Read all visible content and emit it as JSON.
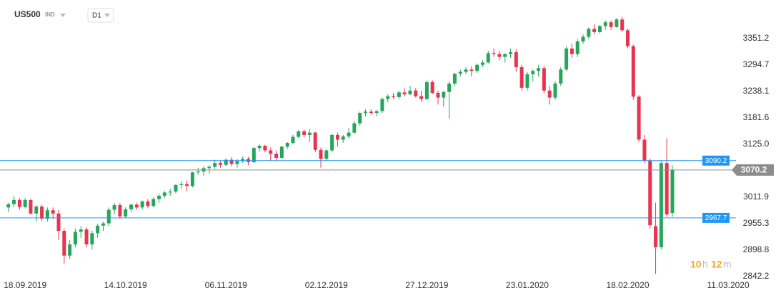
{
  "header": {
    "symbol": "US500",
    "market": "IND",
    "timeframe": "D1"
  },
  "countdown": {
    "hours": "10",
    "hours_unit": "h",
    "minutes": "12",
    "minutes_unit": "m"
  },
  "chart_data": {
    "type": "candlestick",
    "up_color": "#26a65b",
    "down_color": "#e8344e",
    "xlim": [
      -1.5,
      130.4
    ],
    "xticks": [
      {
        "value": 3,
        "label": "18.09.2019"
      },
      {
        "value": 21,
        "label": "14.10.2019"
      },
      {
        "value": 39,
        "label": "06.11.2019"
      },
      {
        "value": 57,
        "label": "02.12.2019"
      },
      {
        "value": 75,
        "label": "27.12.2019"
      },
      {
        "value": 93,
        "label": "23.01.2020"
      },
      {
        "value": 111,
        "label": "18.02.2020"
      },
      {
        "value": 129,
        "label": "11.03.2020"
      }
    ],
    "ylim": [
      2825.4,
      3433.7
    ],
    "yticks": [
      2842.2,
      2898.8,
      2955.3,
      3011.9,
      {
        "value": 3125,
        "label": "3125.0"
      },
      3181.6,
      3238.1,
      3294.7,
      3351.2
    ],
    "grid": false,
    "price_lines": [
      {
        "value": 3090.2,
        "color": "#2196f3"
      },
      {
        "value": 2967.7,
        "color": "#2196f3"
      }
    ],
    "current_price": {
      "value": 3070.2,
      "color": "#8c8c8c"
    },
    "ohlc": [
      [
        2990,
        3000,
        2980,
        2997
      ],
      [
        2997,
        3015,
        2990,
        3006
      ],
      [
        3006,
        3010,
        2985,
        2991
      ],
      [
        2991,
        3010,
        2988,
        3006
      ],
      [
        3006,
        3008,
        2975,
        2977
      ],
      [
        2977,
        2995,
        2960,
        2992
      ],
      [
        2992,
        2996,
        2960,
        2966
      ],
      [
        2966,
        2990,
        2960,
        2984
      ],
      [
        2984,
        2990,
        2965,
        2977
      ],
      [
        2977,
        2985,
        2920,
        2940
      ],
      [
        2940,
        2945,
        2870,
        2887
      ],
      [
        2887,
        2920,
        2880,
        2911
      ],
      [
        2911,
        2945,
        2905,
        2938
      ],
      [
        2938,
        2950,
        2925,
        2943
      ],
      [
        2943,
        2948,
        2905,
        2911
      ],
      [
        2911,
        2940,
        2900,
        2935
      ],
      [
        2935,
        2955,
        2925,
        2951
      ],
      [
        2951,
        2960,
        2940,
        2956
      ],
      [
        2956,
        2990,
        2950,
        2985
      ],
      [
        2985,
        3000,
        2975,
        2995
      ],
      [
        2995,
        3000,
        2965,
        2971
      ],
      [
        2971,
        2990,
        2968,
        2986
      ],
      [
        2986,
        2998,
        2980,
        2996
      ],
      [
        2996,
        3000,
        2985,
        2990
      ],
      [
        2990,
        3005,
        2985,
        3003
      ],
      [
        3003,
        3008,
        2988,
        2993
      ],
      [
        2993,
        3012,
        2990,
        3008
      ],
      [
        3008,
        3020,
        3000,
        3015
      ],
      [
        3015,
        3025,
        3010,
        3022
      ],
      [
        3022,
        3030,
        3015,
        3024
      ],
      [
        3024,
        3040,
        3020,
        3038
      ],
      [
        3038,
        3046,
        3030,
        3040
      ],
      [
        3040,
        3048,
        3025,
        3036
      ],
      [
        3036,
        3066,
        3033,
        3065
      ],
      [
        3065,
        3075,
        3060,
        3067
      ],
      [
        3067,
        3078,
        3058,
        3074
      ],
      [
        3074,
        3080,
        3062,
        3077
      ],
      [
        3077,
        3092,
        3072,
        3085
      ],
      [
        3085,
        3090,
        3075,
        3081
      ],
      [
        3081,
        3095,
        3078,
        3092
      ],
      [
        3092,
        3098,
        3078,
        3083
      ],
      [
        3083,
        3094,
        3075,
        3089
      ],
      [
        3089,
        3100,
        3085,
        3094
      ],
      [
        3094,
        3098,
        3080,
        3087
      ],
      [
        3087,
        3120,
        3085,
        3117
      ],
      [
        3117,
        3125,
        3110,
        3122
      ],
      [
        3122,
        3124,
        3108,
        3112
      ],
      [
        3112,
        3118,
        3090,
        3105
      ],
      [
        3105,
        3112,
        3090,
        3096
      ],
      [
        3096,
        3122,
        3094,
        3120
      ],
      [
        3120,
        3130,
        3115,
        3128
      ],
      [
        3128,
        3145,
        3125,
        3141
      ],
      [
        3141,
        3155,
        3138,
        3153
      ],
      [
        3153,
        3157,
        3140,
        3145
      ],
      [
        3145,
        3158,
        3130,
        3150
      ],
      [
        3150,
        3152,
        3108,
        3113
      ],
      [
        3113,
        3118,
        3075,
        3094
      ],
      [
        3094,
        3115,
        3090,
        3112
      ],
      [
        3112,
        3148,
        3108,
        3145
      ],
      [
        3145,
        3150,
        3120,
        3135
      ],
      [
        3135,
        3145,
        3128,
        3142
      ],
      [
        3142,
        3160,
        3138,
        3150
      ],
      [
        3150,
        3175,
        3148,
        3170
      ],
      [
        3170,
        3195,
        3165,
        3192
      ],
      [
        3192,
        3200,
        3185,
        3195
      ],
      [
        3195,
        3200,
        3188,
        3192
      ],
      [
        3192,
        3198,
        3185,
        3196
      ],
      [
        3196,
        3225,
        3192,
        3222
      ],
      [
        3222,
        3232,
        3215,
        3228
      ],
      [
        3228,
        3235,
        3222,
        3226
      ],
      [
        3226,
        3240,
        3222,
        3236
      ],
      [
        3236,
        3245,
        3228,
        3232
      ],
      [
        3232,
        3250,
        3230,
        3240
      ],
      [
        3240,
        3245,
        3225,
        3228
      ],
      [
        3228,
        3240,
        3215,
        3222
      ],
      [
        3222,
        3262,
        3220,
        3258
      ],
      [
        3258,
        3262,
        3232,
        3235
      ],
      [
        3235,
        3240,
        3210,
        3225
      ],
      [
        3225,
        3240,
        3205,
        3237
      ],
      [
        3237,
        3260,
        3180,
        3255
      ],
      [
        3255,
        3278,
        3250,
        3276
      ],
      [
        3276,
        3285,
        3270,
        3280
      ],
      [
        3280,
        3290,
        3275,
        3285
      ],
      [
        3285,
        3292,
        3270,
        3282
      ],
      [
        3282,
        3298,
        3278,
        3295
      ],
      [
        3295,
        3305,
        3290,
        3300
      ],
      [
        3300,
        3325,
        3298,
        3320
      ],
      [
        3320,
        3330,
        3312,
        3318
      ],
      [
        3318,
        3325,
        3305,
        3312
      ],
      [
        3312,
        3320,
        3300,
        3318
      ],
      [
        3318,
        3330,
        3310,
        3322
      ],
      [
        3322,
        3328,
        3280,
        3290
      ],
      [
        3290,
        3295,
        3240,
        3246
      ],
      [
        3246,
        3280,
        3240,
        3275
      ],
      [
        3275,
        3285,
        3260,
        3282
      ],
      [
        3282,
        3295,
        3270,
        3288
      ],
      [
        3288,
        3292,
        3235,
        3240
      ],
      [
        3240,
        3250,
        3210,
        3225
      ],
      [
        3225,
        3260,
        3220,
        3255
      ],
      [
        3255,
        3290,
        3250,
        3285
      ],
      [
        3285,
        3335,
        3282,
        3330
      ],
      [
        3330,
        3340,
        3310,
        3318
      ],
      [
        3318,
        3350,
        3312,
        3345
      ],
      [
        3345,
        3360,
        3340,
        3355
      ],
      [
        3355,
        3375,
        3350,
        3372
      ],
      [
        3372,
        3382,
        3360,
        3365
      ],
      [
        3365,
        3380,
        3362,
        3378
      ],
      [
        3378,
        3390,
        3370,
        3386
      ],
      [
        3386,
        3390,
        3370,
        3376
      ],
      [
        3376,
        3395,
        3374,
        3392
      ],
      [
        3392,
        3398,
        3365,
        3369
      ],
      [
        3369,
        3372,
        3330,
        3335
      ],
      [
        3335,
        3338,
        3220,
        3227
      ],
      [
        3227,
        3230,
        3130,
        3135
      ],
      [
        3135,
        3145,
        3085,
        3090
      ],
      [
        3090,
        3095,
        2945,
        2952
      ],
      [
        2950,
        3000,
        2848,
        2905
      ],
      [
        2905,
        3090,
        2900,
        3085
      ],
      [
        3085,
        3138,
        2970,
        2975
      ],
      [
        2978,
        3080,
        2970,
        3070.2
      ]
    ]
  }
}
